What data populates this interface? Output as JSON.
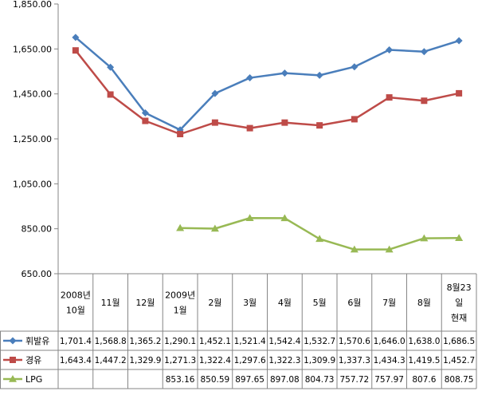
{
  "chart_data": {
    "type": "line",
    "categories": [
      "2008년 10월",
      "11월",
      "12월",
      "2009년 1월",
      "2월",
      "3월",
      "4월",
      "5월",
      "6월",
      "7월",
      "8월",
      "8월23일 현재"
    ],
    "category_lines": [
      [
        "2008년",
        "10월"
      ],
      [
        "11월"
      ],
      [
        "12월"
      ],
      [
        "2009년",
        "1월"
      ],
      [
        "2월"
      ],
      [
        "3월"
      ],
      [
        "4월"
      ],
      [
        "5월"
      ],
      [
        "6월"
      ],
      [
        "7월"
      ],
      [
        "8월"
      ],
      [
        "8월23",
        "일",
        "현재"
      ]
    ],
    "ylim": [
      650,
      1850
    ],
    "yticks": [
      650,
      850,
      1050,
      1250,
      1450,
      1650,
      1850
    ],
    "ytick_labels": [
      "650.00",
      "850.00",
      "1,050.00",
      "1,250.00",
      "1,450.00",
      "1,650.00",
      "1,850.00"
    ],
    "grid": false,
    "legend": "table-left",
    "series": [
      {
        "name": "휘발유",
        "color": "#4a7ebb",
        "marker": "diamond",
        "values": [
          1701.4,
          1568.8,
          1365.2,
          1290.1,
          1452.1,
          1521.4,
          1542.4,
          1532.7,
          1570.6,
          1646.0,
          1638.0,
          1686.5
        ],
        "labels": [
          "1,701.4",
          "1,568.8",
          "1,365.2",
          "1,290.1",
          "1,452.1",
          "1,521.4",
          "1,542.4",
          "1,532.7",
          "1,570.6",
          "1,646.0",
          "1,638.0",
          "1,686.5"
        ]
      },
      {
        "name": "경유",
        "color": "#be4b48",
        "marker": "square",
        "values": [
          1643.4,
          1447.2,
          1329.9,
          1271.3,
          1322.4,
          1297.6,
          1322.3,
          1309.9,
          1337.3,
          1434.3,
          1419.5,
          1452.7
        ],
        "labels": [
          "1,643.4",
          "1,447.2",
          "1,329.9",
          "1,271.3",
          "1,322.4",
          "1,297.6",
          "1,322.3",
          "1,309.9",
          "1,337.3",
          "1,434.3",
          "1,419.5",
          "1,452.7"
        ]
      },
      {
        "name": "LPG",
        "color": "#98b954",
        "marker": "triangle",
        "values": [
          null,
          null,
          null,
          853.16,
          850.59,
          897.65,
          897.08,
          804.73,
          757.72,
          757.97,
          807.6,
          808.75
        ],
        "labels": [
          "",
          "",
          "",
          "853.16",
          "850.59",
          "897.65",
          "897.08",
          "804.73",
          "757.72",
          "757.97",
          "807.6",
          "808.75"
        ]
      }
    ]
  }
}
